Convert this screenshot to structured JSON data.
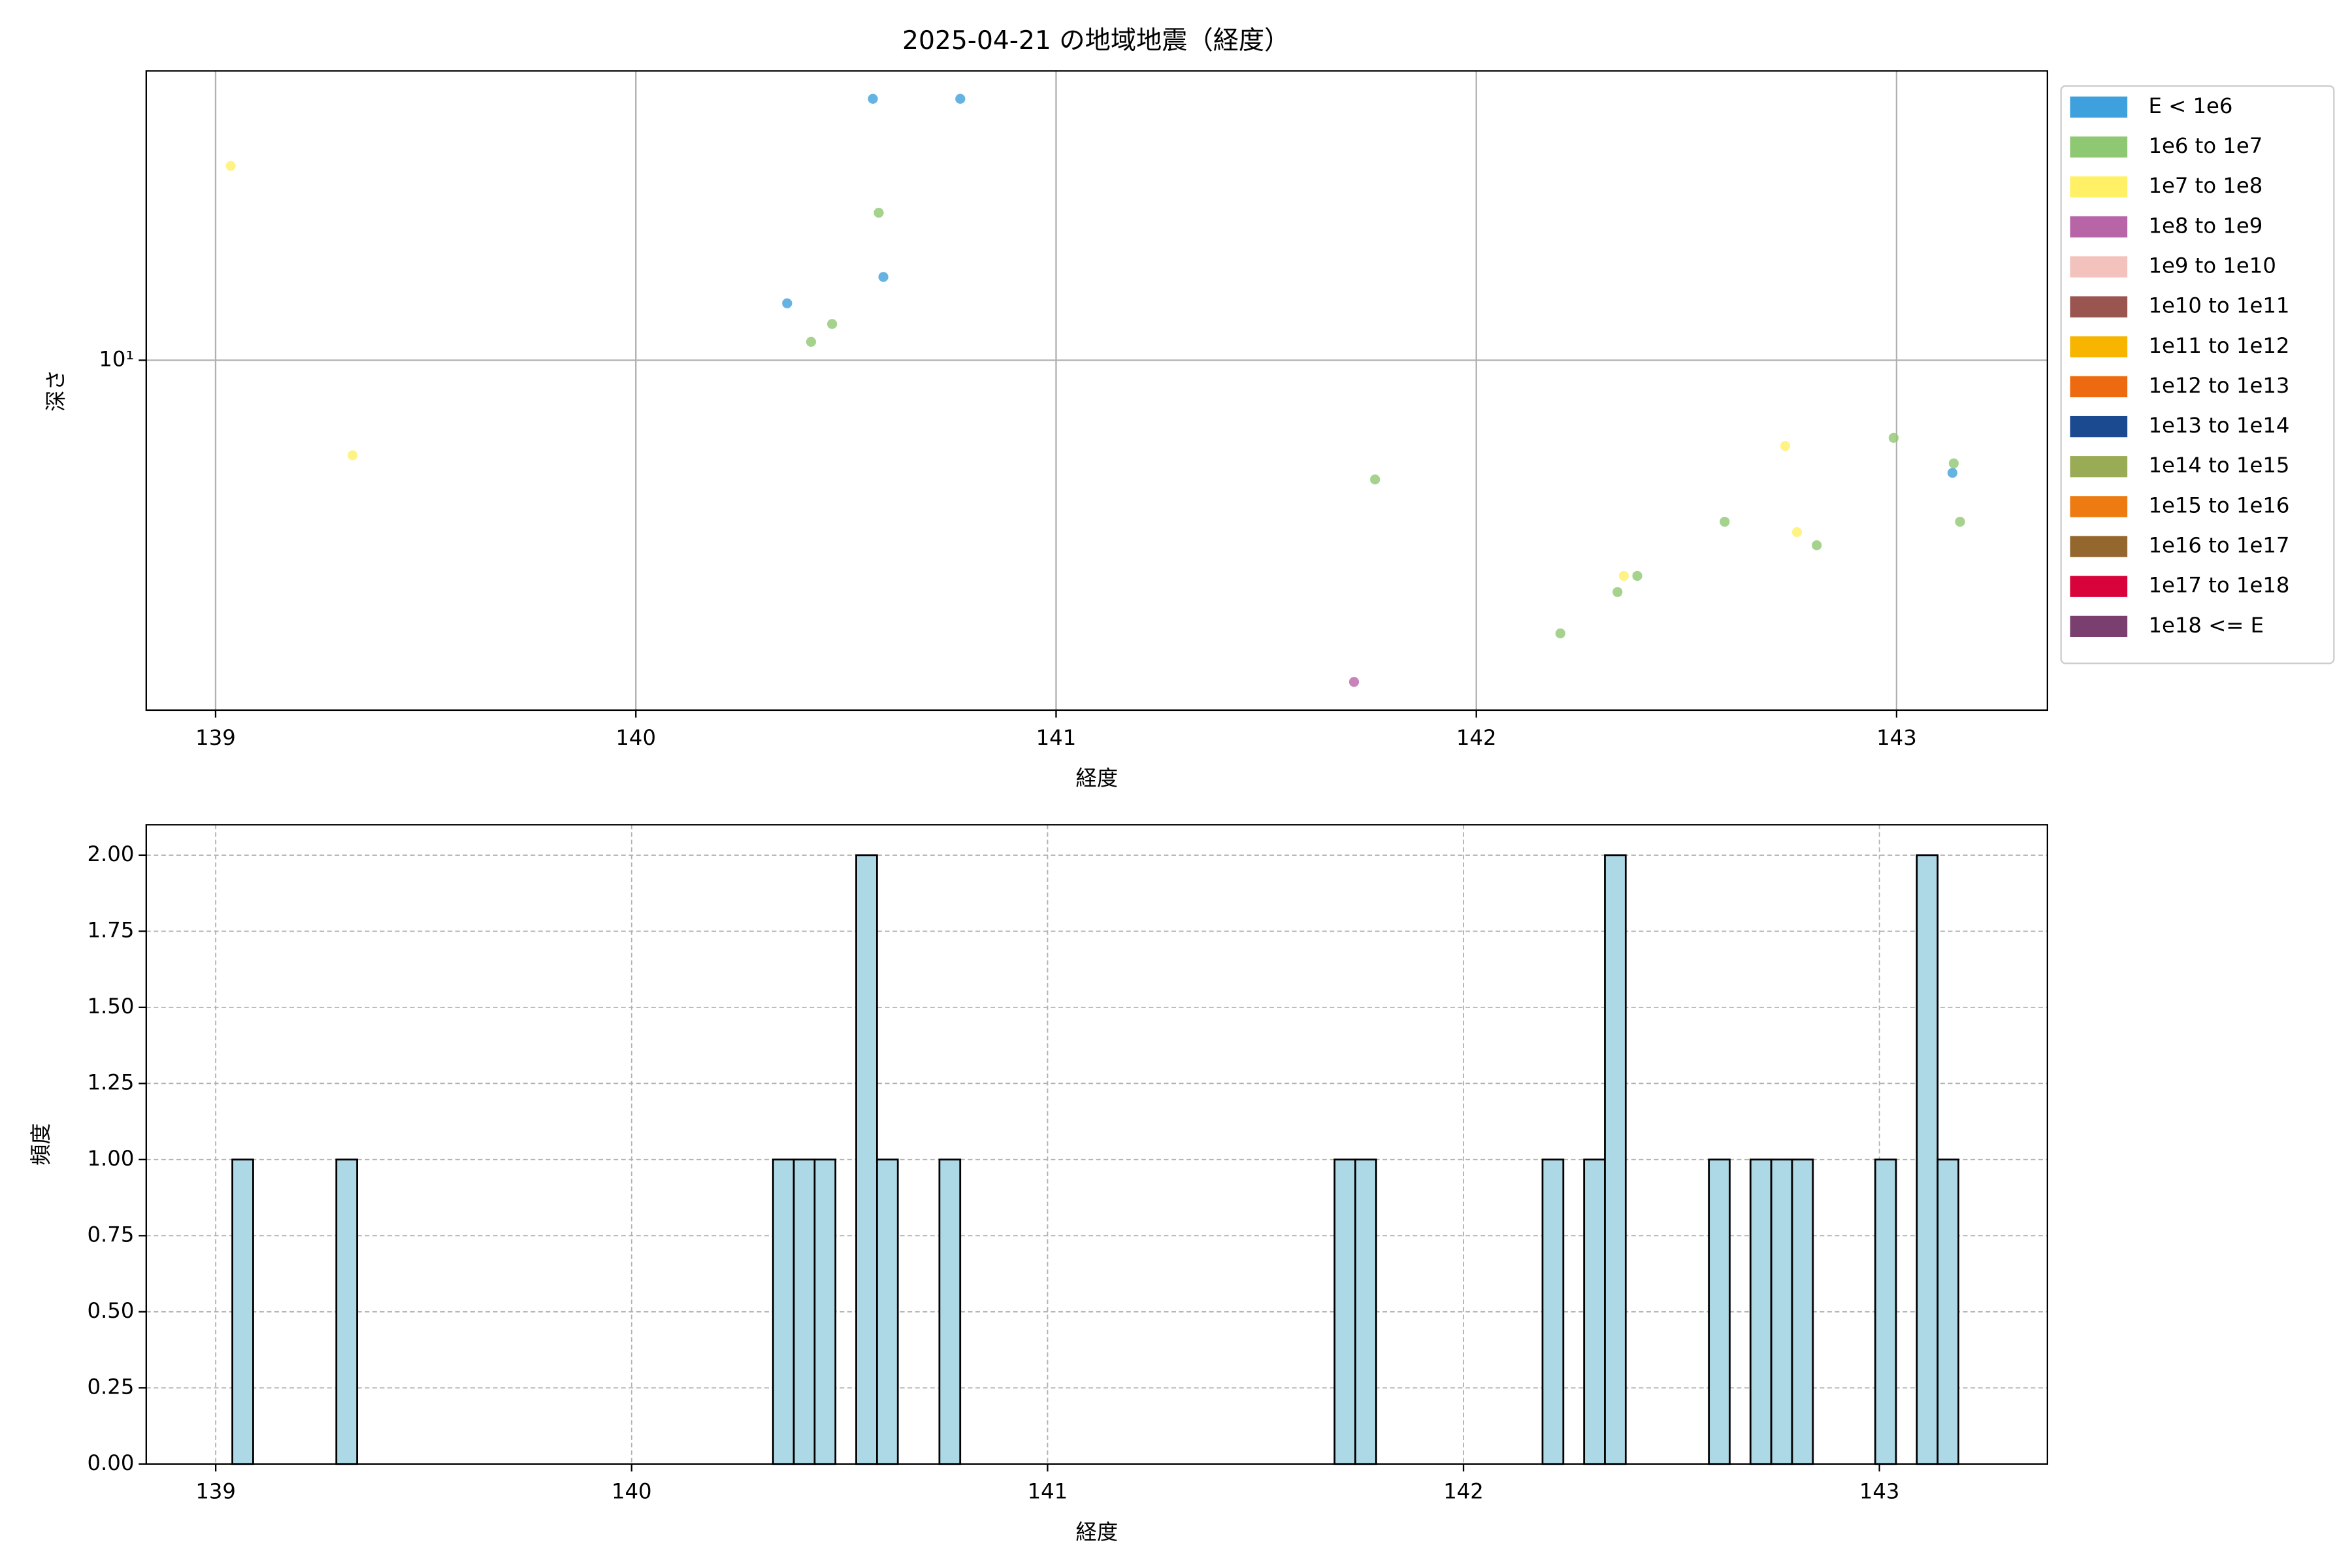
{
  "chart_data": [
    {
      "type": "scatter",
      "title": "2025-04-21 の地域地震（経度）",
      "x_label": "経度",
      "y_label": "深さ",
      "log_y": true,
      "grid": true,
      "legend": "outside right",
      "xlim": [
        138.835,
        143.359
      ],
      "xticks": [
        139,
        140,
        141,
        142,
        143
      ],
      "ylim": [
        1.16,
        59.4
      ],
      "yticks": [
        {
          "value": 10,
          "label": "10¹"
        }
      ],
      "series": [
        {
          "name": "E < 1e6",
          "color": "#3ea0dc",
          "x": [
            140.564,
            140.772,
            140.589,
            140.36,
            143.133
          ],
          "y": [
            50,
            50,
            16.7,
            14.2,
            5.0
          ]
        },
        {
          "name": "1e6 to 1e7",
          "color": "#8fc872",
          "x": [
            140.578,
            140.467,
            140.417,
            141.759,
            142.591,
            142.81,
            142.383,
            142.336,
            142.2,
            142.993,
            143.136,
            143.151
          ],
          "y": [
            24.8,
            12.5,
            11.2,
            4.8,
            3.7,
            3.2,
            2.65,
            2.4,
            1.86,
            6.2,
            5.3,
            3.7
          ]
        },
        {
          "name": "1e7 to 1e8",
          "color": "#fff066",
          "x": [
            139.036,
            139.326,
            142.735,
            142.763,
            142.351
          ],
          "y": [
            33.1,
            5.57,
            5.9,
            3.47,
            2.65
          ]
        },
        {
          "name": "1e8 to 1e9",
          "color": "#b865a8",
          "x": [
            141.709
          ],
          "y": [
            1.38
          ]
        },
        {
          "name": "1e9 to 1e10",
          "color": "#f4c2bc",
          "x": [],
          "y": []
        },
        {
          "name": "1e10 to 1e11",
          "color": "#9a5550",
          "x": [],
          "y": []
        },
        {
          "name": "1e11 to 1e12",
          "color": "#f7b500",
          "x": [],
          "y": []
        },
        {
          "name": "1e12 to 1e13",
          "color": "#ee6a10",
          "x": [],
          "y": []
        },
        {
          "name": "1e13 to 1e14",
          "color": "#1c4a90",
          "x": [],
          "y": []
        },
        {
          "name": "1e14 to 1e15",
          "color": "#9aab55",
          "x": [],
          "y": []
        },
        {
          "name": "1e15 to 1e16",
          "color": "#ee7b12",
          "x": [],
          "y": []
        },
        {
          "name": "1e16 to 1e17",
          "color": "#93672d",
          "x": [],
          "y": []
        },
        {
          "name": "1e17 to 1e18",
          "color": "#d8033b",
          "x": [],
          "y": []
        },
        {
          "name": "1e18 <= E",
          "color": "#7a3f6e",
          "x": [],
          "y": []
        }
      ]
    },
    {
      "type": "histogram",
      "x_label": "経度",
      "y_label": "頻度",
      "grid": true,
      "color": "#add8e6",
      "edge_color": "#000000",
      "xlim": [
        138.833,
        143.404
      ],
      "xticks": [
        139,
        140,
        141,
        142,
        143
      ],
      "ylim": [
        0,
        2.1
      ],
      "yticks": [
        {
          "value": 0,
          "label": "0.00"
        },
        {
          "value": 0.25,
          "label": "0.25"
        },
        {
          "value": 0.5,
          "label": "0.50"
        },
        {
          "value": 0.75,
          "label": "0.75"
        },
        {
          "value": 1,
          "label": "1.00"
        },
        {
          "value": 1.25,
          "label": "1.25"
        },
        {
          "value": 1.5,
          "label": "1.50"
        },
        {
          "value": 1.75,
          "label": "1.75"
        },
        {
          "value": 2,
          "label": "2.00"
        }
      ],
      "bins": [
        139.04,
        139.09,
        139.14,
        139.19,
        139.24,
        139.29,
        139.34,
        139.39,
        139.44,
        139.49,
        139.54,
        139.59,
        139.64,
        139.69,
        139.74,
        139.79,
        139.84,
        139.89,
        139.94,
        139.99,
        140.04,
        140.09,
        140.14,
        140.19,
        140.24,
        140.29,
        140.34,
        140.39,
        140.44,
        140.49,
        140.54,
        140.59,
        140.64,
        140.69,
        140.74,
        140.79,
        140.84,
        140.89,
        140.94,
        140.99,
        141.04,
        141.09,
        141.14,
        141.19,
        141.24,
        141.29,
        141.34,
        141.39,
        141.44,
        141.49,
        141.54,
        141.59,
        141.64,
        141.69,
        141.74,
        141.79,
        141.84,
        141.89,
        141.94,
        141.99,
        142.04,
        142.09,
        142.14,
        142.19,
        142.24,
        142.29,
        142.34,
        142.39,
        142.44,
        142.49,
        142.54,
        142.59,
        142.64,
        142.69,
        142.74,
        142.79,
        142.84,
        142.89,
        142.94,
        142.99,
        143.04,
        143.09,
        143.14,
        143.19
      ],
      "values": [
        1,
        0,
        0,
        0,
        0,
        1,
        0,
        0,
        0,
        0,
        0,
        0,
        0,
        0,
        0,
        0,
        0,
        0,
        0,
        0,
        0,
        0,
        0,
        0,
        0,
        0,
        1,
        1,
        1,
        0,
        2,
        1,
        0,
        0,
        1,
        0,
        0,
        0,
        0,
        0,
        0,
        0,
        0,
        0,
        0,
        0,
        0,
        0,
        0,
        0,
        0,
        0,
        0,
        1,
        1,
        0,
        0,
        0,
        0,
        0,
        0,
        0,
        0,
        1,
        0,
        1,
        2,
        0,
        0,
        0,
        0,
        1,
        0,
        1,
        1,
        1,
        0,
        0,
        0,
        1,
        0,
        2,
        1
      ]
    }
  ]
}
